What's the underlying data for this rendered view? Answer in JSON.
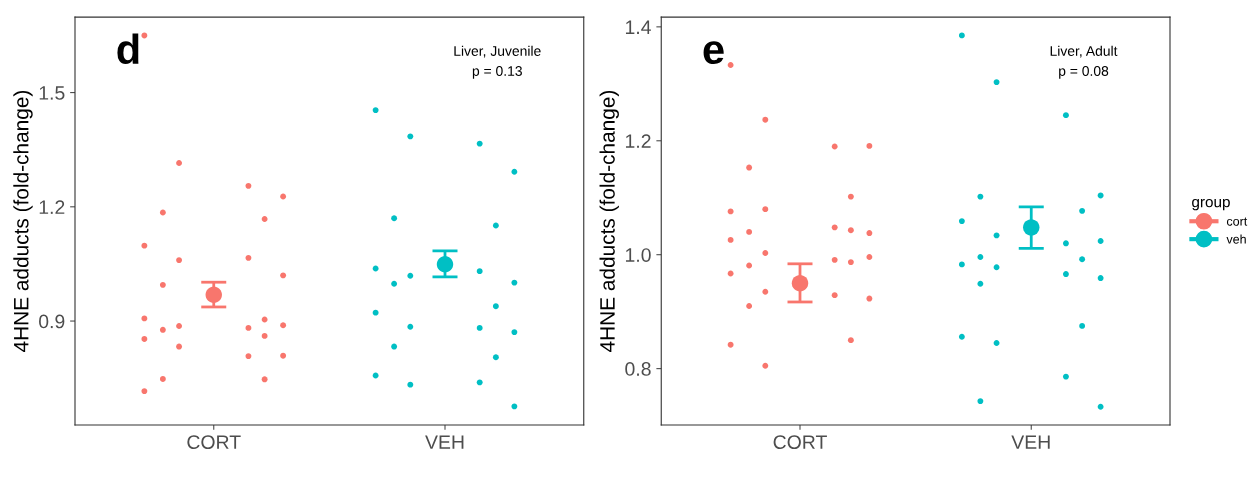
{
  "chart_data": [
    {
      "type": "scatter",
      "ylabel": "4HNE adducts (fold-change)",
      "annotations": [
        "d",
        "Liver, Juvenile\np = 0.13"
      ],
      "categories": [
        "CORT",
        "VEH"
      ],
      "ylim": [
        0.627,
        1.698
      ],
      "yticks": [
        0.9,
        1.2,
        1.5
      ],
      "grid": false,
      "legend": false,
      "marker": "circle",
      "series": [
        {
          "color": "#f8766d",
          "x": [
            "CORT",
            "CORT",
            "CORT",
            "CORT",
            "CORT",
            "CORT",
            "CORT",
            "CORT",
            "CORT",
            "CORT",
            "CORT",
            "CORT",
            "CORT",
            "CORT",
            "CORT",
            "CORT",
            "CORT",
            "CORT",
            "CORT",
            "CORT",
            "CORT",
            "CORT",
            "CORT",
            "CORT",
            "CORT"
          ],
          "values": [
            1.65,
            1.315,
            1.255,
            1.227,
            1.185,
            1.168,
            1.098,
            1.06,
            1.066,
            1.02,
            0.995,
            0.904,
            0.907,
            0.887,
            0.882,
            0.889,
            0.877,
            0.861,
            0.853,
            0.833,
            0.808,
            0.809,
            0.748,
            0.747,
            0.716
          ]
        },
        {
          "color": "#00bfc4",
          "x": [
            "VEH",
            "VEH",
            "VEH",
            "VEH",
            "VEH",
            "VEH",
            "VEH",
            "VEH",
            "VEH",
            "VEH",
            "VEH",
            "VEH",
            "VEH",
            "VEH",
            "VEH",
            "VEH",
            "VEH",
            "VEH",
            "VEH",
            "VEH",
            "VEH",
            "VEH"
          ],
          "values": [
            1.454,
            1.385,
            1.366,
            1.292,
            1.17,
            1.151,
            1.038,
            1.019,
            1.031,
            1.001,
            0.998,
            0.939,
            0.922,
            0.885,
            0.882,
            0.871,
            0.833,
            0.805,
            0.757,
            0.733,
            0.739,
            0.676
          ]
        },
        {
          "color": "#f8766d",
          "x": [
            "CORT"
          ],
          "values": [
            0.969
          ],
          "errors": [
            [
              0.937,
              1.002
            ]
          ]
        },
        {
          "color": "#00bfc4",
          "x": [
            "VEH"
          ],
          "values": [
            1.049
          ],
          "errors": [
            [
              1.016,
              1.084
            ]
          ]
        }
      ]
    },
    {
      "type": "scatter",
      "ylabel": "4HNE adducts (fold-change)",
      "annotations": [
        "e",
        "Liver, Adult\np = 0.08"
      ],
      "legend_title": "group",
      "categories": [
        "CORT",
        "VEH"
      ],
      "ylim": [
        0.701,
        1.417
      ],
      "yticks": [
        0.8,
        {
          "value": 1.0,
          "label": "1.0"
        },
        1.2,
        1.4
      ],
      "grid": false,
      "legend": "right",
      "marker": "circle",
      "series": [
        {
          "name": "cort",
          "color": "#f8766d",
          "x": [
            "CORT",
            "CORT",
            "CORT",
            "CORT",
            "CORT",
            "CORT",
            "CORT",
            "CORT",
            "CORT",
            "CORT",
            "CORT",
            "CORT",
            "CORT",
            "CORT",
            "CORT",
            "CORT",
            "CORT",
            "CORT",
            "CORT",
            "CORT",
            "CORT",
            "CORT",
            "CORT",
            "CORT",
            "CORT",
            "CORT"
          ],
          "values": [
            1.333,
            1.237,
            1.19,
            1.191,
            1.153,
            1.102,
            1.076,
            1.08,
            1.048,
            1.038,
            1.04,
            1.043,
            1.026,
            1.003,
            0.991,
            0.996,
            0.981,
            0.987,
            0.967,
            0.935,
            0.929,
            0.923,
            0.91,
            0.85,
            0.842,
            0.805
          ]
        },
        {
          "name": "veh",
          "color": "#00bfc4",
          "x": [
            "VEH",
            "VEH",
            "VEH",
            "VEH",
            "VEH",
            "VEH",
            "VEH",
            "VEH",
            "VEH",
            "VEH",
            "VEH",
            "VEH",
            "VEH",
            "VEH",
            "VEH",
            "VEH",
            "VEH",
            "VEH",
            "VEH",
            "VEH",
            "VEH",
            "VEH",
            "VEH"
          ],
          "values": [
            1.385,
            1.303,
            1.245,
            1.104,
            1.102,
            1.077,
            1.059,
            1.034,
            1.02,
            1.024,
            0.996,
            0.992,
            0.983,
            0.978,
            0.966,
            0.959,
            0.949,
            0.875,
            0.856,
            0.845,
            0.786,
            0.733,
            0.743
          ]
        },
        {
          "color": "#f8766d",
          "x": [
            "CORT"
          ],
          "values": [
            0.95
          ],
          "errors": [
            [
              0.917,
              0.984
            ]
          ]
        },
        {
          "color": "#00bfc4",
          "x": [
            "VEH"
          ],
          "values": [
            1.048
          ],
          "errors": [
            [
              1.011,
              1.084
            ]
          ]
        }
      ]
    }
  ]
}
